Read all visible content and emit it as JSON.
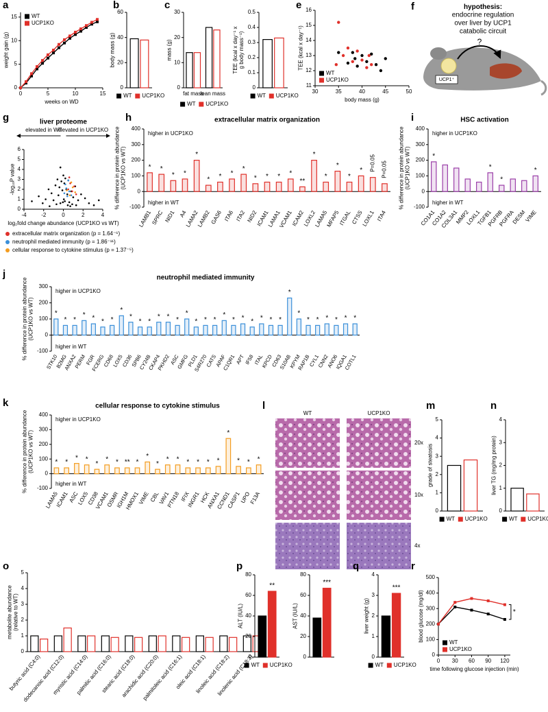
{
  "chart_data": [
    {
      "type": "line",
      "panel": "a",
      "ylabel": "weight gain (g)",
      "xlabel": "weeks on WD",
      "x": [
        0,
        1,
        2,
        3,
        4,
        5,
        6,
        7,
        8,
        9,
        10,
        11,
        12,
        13,
        14
      ],
      "xlim": [
        0,
        15
      ],
      "xticks": [
        0,
        5,
        10,
        15
      ],
      "ylim": [
        0,
        16
      ],
      "yticks": [
        0,
        5,
        10,
        15
      ],
      "legend": "upper left",
      "series": [
        {
          "name": "WT",
          "color": "#000000",
          "values": [
            0,
            1,
            2.5,
            4,
            5.2,
            6.3,
            7.4,
            8.5,
            9.5,
            10.5,
            11.3,
            12,
            12.8,
            13.5,
            14
          ]
        },
        {
          "name": "UCP1KO",
          "color": "#e0302a",
          "values": [
            0,
            1.3,
            3,
            4.5,
            5.8,
            7,
            8,
            9.2,
            10.2,
            11,
            11.8,
            12.5,
            13.2,
            13.9,
            14.5
          ]
        }
      ]
    },
    {
      "type": "bar",
      "panel": "b",
      "ylabel": "body mass (g)",
      "ylim": [
        0,
        60
      ],
      "yticks": [
        0,
        20,
        40,
        60
      ],
      "style": "open",
      "legend": "below",
      "series": [
        {
          "name": "WT",
          "color": "#000000",
          "values": [
            39
          ]
        },
        {
          "name": "UCP1KO",
          "color": "#e0302a",
          "values": [
            38
          ]
        }
      ]
    },
    {
      "type": "bar",
      "panel": "c",
      "ylabel": "mass (g)",
      "categories": [
        "fat mass",
        "lean mass"
      ],
      "ylim": [
        0,
        30
      ],
      "yticks": [
        0,
        10,
        20,
        30
      ],
      "style": "open",
      "legend": "below",
      "series": [
        {
          "name": "WT",
          "color": "#000000",
          "values": [
            14,
            24
          ]
        },
        {
          "name": "UCP1KO",
          "color": "#e0302a",
          "values": [
            14,
            23
          ]
        }
      ]
    },
    {
      "type": "bar",
      "ylabel": [
        "TEE (kcal x day⁻¹ x",
        "g body mass⁻¹)"
      ],
      "ylim": [
        0,
        0.5
      ],
      "yticks": [
        0,
        0.1,
        0.2,
        0.3,
        0.4,
        0.5
      ],
      "style": "open",
      "legend": "below",
      "series": [
        {
          "name": "WT",
          "color": "#000000",
          "values": [
            0.32
          ]
        },
        {
          "name": "UCP1KO",
          "color": "#e0302a",
          "values": [
            0.33
          ]
        }
      ]
    },
    {
      "type": "scatter",
      "panel": "e",
      "ylabel": "TEE (kcal x day⁻¹)",
      "xlabel": "body mass (g)",
      "xlim": [
        30,
        50
      ],
      "xticks": [
        30,
        35,
        40,
        45,
        50
      ],
      "ylim": [
        11,
        16
      ],
      "yticks": [
        11,
        12,
        13,
        14,
        15,
        16
      ],
      "legend": "lower left",
      "series": [
        {
          "name": "WT",
          "color": "#000000",
          "x": [
            35,
            37,
            38,
            38.5,
            39,
            40,
            41,
            42,
            43,
            44,
            45
          ],
          "y": [
            13.2,
            12.5,
            13.2,
            12.8,
            12.3,
            13.0,
            12.6,
            13.1,
            12.4,
            12.0,
            12.8
          ]
        },
        {
          "name": "UCP1KO",
          "color": "#e0302a",
          "x": [
            34.5,
            35,
            36,
            37,
            38,
            39,
            40,
            41,
            41.5,
            42
          ],
          "y": [
            12.4,
            15.2,
            13.0,
            13.5,
            12.6,
            13.3,
            12.7,
            12.2,
            13.0,
            12.4
          ]
        }
      ]
    },
    {
      "type": "scatter",
      "panel": "g",
      "title": "liver proteome",
      "arrows": [
        "elevated in WT",
        "elevated in UCP1KO"
      ],
      "ylabel": "-log₁₀P value",
      "xlabel": "log₂fold change abundance (UCP1KO vs WT)",
      "xlim": [
        -4,
        4
      ],
      "xticks": [
        -4,
        -2,
        0,
        2,
        4
      ],
      "ylim": [
        0,
        6
      ],
      "yticks": [
        0,
        1,
        2,
        3,
        4,
        5,
        6
      ],
      "legend": "below",
      "series": [
        {
          "color": "#000000",
          "x": [
            -3.2,
            -2.5,
            -2.1,
            -1.8,
            -1.5,
            -1.2,
            -1.0,
            -0.8,
            -0.6,
            -0.5,
            -0.4,
            -0.3,
            -0.2,
            -0.1,
            0,
            0.1,
            0.2,
            0.3,
            0.4,
            0.5,
            0.6,
            0.8,
            1.0,
            1.2,
            1.5,
            1.8,
            2.2,
            2.6,
            3.1,
            3.6,
            -0.7,
            -0.3,
            0.15,
            0.45,
            0.9,
            -1.4,
            1.3,
            0.05,
            -0.05,
            0.7
          ],
          "y": [
            0.8,
            1.3,
            0.6,
            1.0,
            2.0,
            1.6,
            0.9,
            2.4,
            3.0,
            1.4,
            2.2,
            4.2,
            2.8,
            1.9,
            3.4,
            2.6,
            3.1,
            2.0,
            1.5,
            2.9,
            0.7,
            1.8,
            1.2,
            2.3,
            0.9,
            1.5,
            1.1,
            0.6,
            0.4,
            0.9,
            0.5,
            0.6,
            0.8,
            0.4,
            0.5,
            0.3,
            0.4,
            1.0,
            0.7,
            0.3
          ]
        },
        {
          "name": "extracellular matrix organization (p = 1.64⁻⁶)",
          "color": "#e0302a",
          "x": [
            0.5,
            0.7,
            0.9,
            1.1,
            0.6,
            1.3
          ],
          "y": [
            2.0,
            2.6,
            1.8,
            2.3,
            3.2,
            1.5
          ]
        },
        {
          "name": "neutrophil mediated immunity (p = 1.86⁻¹¹)",
          "color": "#3a8fd9",
          "x": [
            0.1,
            0.3,
            0.4,
            0.6,
            0.2,
            0.8,
            0.5
          ],
          "y": [
            1.6,
            2.1,
            1.3,
            1.8,
            2.5,
            1.4,
            2.9
          ]
        },
        {
          "name": "cellular response to cytokine stimulus (p = 1.37⁻⁵)",
          "color": "#f39c1f",
          "x": [
            0.35,
            0.65,
            0.95,
            1.2,
            0.8
          ],
          "y": [
            1.9,
            1.4,
            2.2,
            1.7,
            2.7
          ]
        }
      ]
    },
    {
      "type": "bar",
      "panel": "h",
      "title": "extracellular matrix organization",
      "note_high": "higher in UCP1KO",
      "note_low": "higher in WT",
      "ylabel": [
        "% difference in protein abundance",
        "(UCP1KO vs WT)"
      ],
      "ylim": [
        -100,
        400
      ],
      "yticks": [
        -100,
        0,
        100,
        200,
        300,
        400
      ],
      "style": "tint",
      "categories": [
        "LAMB1",
        "SPRC",
        "NID1",
        "A4",
        "LAMA2",
        "LAMB2",
        "GAS6",
        "ITA6",
        "ITA2",
        "NID2",
        "ICAM1",
        "LAMA1",
        "VCAM1",
        "ICAM2",
        "LOXL2",
        "LAMA5",
        "MFAP5",
        "ITGAL",
        "CTSS",
        "LOXL1",
        "ITA4"
      ],
      "annotations": [
        "*",
        "*",
        "*",
        "*",
        "*",
        "*",
        "*",
        "*",
        "*",
        "*",
        "*",
        "*",
        "*",
        "**",
        "*",
        "*",
        "*",
        "*",
        "*",
        "P=0.05",
        "P=0.05"
      ],
      "series": [
        {
          "color": "#e0302a",
          "values": [
            120,
            110,
            70,
            80,
            200,
            40,
            60,
            80,
            110,
            50,
            60,
            60,
            80,
            30,
            200,
            60,
            130,
            60,
            100,
            90,
            50
          ]
        }
      ]
    },
    {
      "type": "bar",
      "panel": "i",
      "title": "HSC activation",
      "note_high": "higher in UCP1KO",
      "note_low": "higher in WT",
      "ylabel": [
        "% difference in protein abundance",
        "(UCP1KO vs WT)"
      ],
      "ylim": [
        -100,
        400
      ],
      "yticks": [
        -100,
        0,
        100,
        200,
        300,
        400
      ],
      "style": "tint",
      "categories": [
        "CO1A1",
        "CO1A2",
        "COL3A1",
        "MMP2",
        "LOXL1",
        "TGFB1",
        "PGFRB",
        "PGFRA",
        "DESM",
        "VIME"
      ],
      "annotations": [
        "*",
        null,
        null,
        null,
        null,
        "*",
        "*",
        null,
        null,
        "*"
      ],
      "series": [
        {
          "color": "#9b3fa8",
          "values": [
            190,
            170,
            150,
            80,
            60,
            120,
            40,
            80,
            70,
            100
          ]
        }
      ]
    },
    {
      "type": "bar",
      "panel": "j",
      "title": "neutrophil mediated immunity",
      "note_high": "higher in UCP1KO",
      "note_low": "higher in WT",
      "ylabel": [
        "% difference in protein abundance",
        "(UCP1KO vs WT)"
      ],
      "ylim": [
        -100,
        300
      ],
      "yticks": [
        -100,
        0,
        100,
        200,
        300
      ],
      "style": "tint",
      "categories": [
        "STK10",
        "B2MG",
        "ANXA2",
        "PERM",
        "FGR",
        "FCERG",
        "CD68",
        "LOX5",
        "CD36",
        "SPB6",
        "CY24B",
        "CKAP4",
        "PKHD2",
        "ASC",
        "GMFG",
        "PLD1",
        "S4R270",
        "CATS",
        "APAF",
        "C1QR1",
        "APT",
        "IF58",
        "ITAL",
        "KPCD",
        "CD63",
        "S10AB",
        "KPYM",
        "RAP1B",
        "CYL1",
        "CNN2",
        "ANO6",
        "IQGA1",
        "COTL1"
      ],
      "annotations": [
        "*",
        "*",
        "*",
        "*",
        "*",
        "*",
        "*",
        "*",
        "*",
        "*",
        "*",
        "*",
        "*",
        "*",
        "*",
        "*",
        "*",
        "*",
        "*",
        "*",
        "*",
        "*",
        "*",
        "*",
        "*",
        "*",
        "*",
        "*",
        "*",
        "*",
        "*",
        "*",
        "*"
      ],
      "series": [
        {
          "color": "#3a8fd9",
          "values": [
            100,
            60,
            60,
            90,
            70,
            50,
            60,
            120,
            80,
            50,
            50,
            80,
            80,
            60,
            100,
            50,
            60,
            60,
            90,
            60,
            70,
            50,
            70,
            60,
            60,
            230,
            100,
            60,
            60,
            70,
            60,
            70,
            70
          ]
        }
      ]
    },
    {
      "type": "bar",
      "panel": "k",
      "title": "cellular response to cytokine stimulus",
      "note_high": "higher in UCP1KO",
      "note_low": "higher in WT",
      "ylabel": [
        "% difference in protein abundance",
        "(UCP1KO vs WT)"
      ],
      "ylim": [
        -100,
        400
      ],
      "yticks": [
        -100,
        0,
        100,
        200,
        300,
        400
      ],
      "style": "tint",
      "categories": [
        "LAMA5",
        "ICAM1",
        "ASC",
        "LOX5",
        "CD38",
        "VCAM1",
        "OSMR",
        "IGH1M",
        "HMOX1",
        "VIME",
        "CBL",
        "VAV1",
        "PTN18",
        "IFIX",
        "INGR1",
        "HCK",
        "ANXA1",
        "CCND1",
        "CASP1",
        "UPO",
        "F13A"
      ],
      "annotations": [
        "*",
        "*",
        "*",
        "*",
        "*",
        "*",
        "*",
        "**",
        "*",
        "*",
        "*",
        "*",
        "*",
        "*",
        "*",
        "*",
        "*",
        "*",
        "*",
        "*",
        "*"
      ],
      "series": [
        {
          "color": "#f39c1f",
          "values": [
            40,
            40,
            70,
            60,
            30,
            60,
            40,
            40,
            40,
            80,
            30,
            60,
            60,
            40,
            40,
            40,
            50,
            240,
            50,
            40,
            60
          ]
        }
      ]
    },
    {
      "type": "bar",
      "panel": "m",
      "ylabel": "grade of steatosis",
      "ylim": [
        0,
        5
      ],
      "yticks": [
        0,
        1,
        2,
        3,
        4,
        5
      ],
      "style": "open",
      "legend": "below",
      "series": [
        {
          "name": "WT",
          "color": "#000000",
          "values": [
            2.5
          ]
        },
        {
          "name": "UCP1KO",
          "color": "#e0302a",
          "values": [
            2.8
          ]
        }
      ]
    },
    {
      "type": "bar",
      "panel": "n",
      "ylabel": "liver TG (mg/mg protein)",
      "ylim": [
        0,
        4
      ],
      "yticks": [
        0,
        1,
        2,
        3,
        4
      ],
      "style": "open",
      "legend": "below",
      "series": [
        {
          "name": "WT",
          "color": "#000000",
          "values": [
            1.0
          ]
        },
        {
          "name": "UCP1KO",
          "color": "#e0302a",
          "values": [
            0.75
          ]
        }
      ]
    },
    {
      "type": "bar",
      "panel": "o",
      "ylabel": [
        "metabolite abundance",
        "(relative to WT)"
      ],
      "ylim": [
        0,
        5
      ],
      "yticks": [
        0,
        1,
        2,
        3,
        4,
        5
      ],
      "style": "open",
      "categories": [
        "butyric acid (C4:0)",
        "dodecanoic acid (C12:0)",
        "myristic acid (C14:0)",
        "palmitic acid (C16:0)",
        "stearic acid (C18:0)",
        "arachidic acid (C20:0)",
        "palmitoleic acid (C16:1)",
        "oleic acid (C18:1)",
        "linoleic acid (C18:2)",
        "linolenic acid (C18:3)"
      ],
      "series": [
        {
          "color": "#000000",
          "values": [
            1,
            1,
            1,
            1,
            1,
            1,
            1,
            1,
            1,
            1
          ]
        },
        {
          "color": "#e0302a",
          "values": [
            0.8,
            1.5,
            1.0,
            0.9,
            0.9,
            1.0,
            0.9,
            0.9,
            0.9,
            1.0
          ]
        }
      ]
    },
    {
      "type": "bar",
      "panel": "p",
      "ylabel": "ALT (IU/L)",
      "ylim": [
        0,
        80
      ],
      "yticks": [
        0,
        20,
        40,
        60,
        80
      ],
      "style": "filled",
      "legend": "below",
      "annotations": [
        null,
        "**"
      ],
      "series": [
        {
          "name": "WT",
          "color": "#000000",
          "values": [
            40
          ]
        },
        {
          "name": "UCP1KO",
          "color": "#e0302a",
          "values": [
            64
          ]
        }
      ]
    },
    {
      "type": "bar",
      "ylabel": "AST (IU/L)",
      "ylim": [
        0,
        80
      ],
      "yticks": [
        0,
        20,
        40,
        60,
        80
      ],
      "style": "filled",
      "annotations": [
        null,
        "***"
      ],
      "series": [
        {
          "color": "#000000",
          "values": [
            38
          ]
        },
        {
          "color": "#e0302a",
          "values": [
            67
          ]
        }
      ]
    },
    {
      "type": "bar",
      "panel": "q",
      "ylabel": "liver weight (g)",
      "ylim": [
        0,
        4
      ],
      "yticks": [
        0,
        1,
        2,
        3,
        4
      ],
      "style": "filled",
      "legend": "below",
      "annotations": [
        null,
        "***"
      ],
      "series": [
        {
          "name": "WT",
          "color": "#000000",
          "values": [
            2.0
          ]
        },
        {
          "name": "UCP1KO",
          "color": "#e0302a",
          "values": [
            3.1
          ]
        }
      ]
    },
    {
      "type": "line",
      "panel": "r",
      "ylabel": "blood glucose (mg/dl)",
      "xlabel": "time following glucose injection (min)",
      "x": [
        0,
        30,
        60,
        90,
        120
      ],
      "xlim": [
        0,
        130
      ],
      "xticks": [
        0,
        30,
        60,
        90,
        120
      ],
      "ylim": [
        0,
        500
      ],
      "yticks": [
        0,
        100,
        200,
        300,
        400,
        500
      ],
      "legend": "lower left",
      "significance": "*",
      "series": [
        {
          "name": "WT",
          "color": "#000000",
          "values": [
            200,
            310,
            290,
            265,
            230
          ]
        },
        {
          "name": "UCP1KO",
          "color": "#e0302a",
          "values": [
            200,
            340,
            365,
            350,
            325
          ]
        }
      ]
    }
  ],
  "panel_f": {
    "panel": "f",
    "lead": "hypothesis:",
    "text": [
      "endocrine regulation",
      "over liver by UCP1",
      "catabolic circuit"
    ],
    "cell_label": "UCP1⁺",
    "question": "?"
  },
  "panel_l": {
    "panel": "l",
    "columns": [
      "WT",
      "UCP1KO"
    ],
    "rows": [
      "20x",
      "10x",
      "4x"
    ]
  }
}
